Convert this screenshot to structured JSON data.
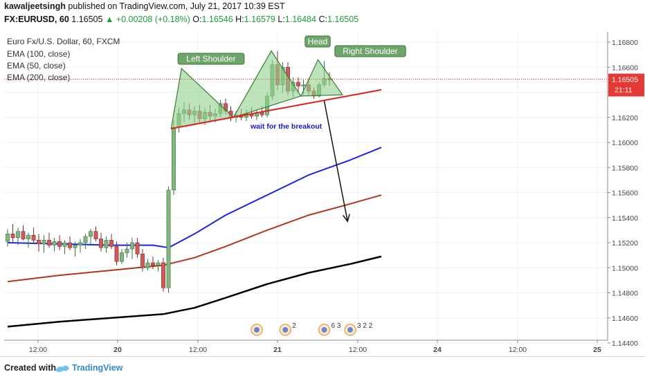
{
  "header": {
    "author": "kawaljeetsingh",
    "published_text": "published on TradingView.com, July 21, 2017 10:39 EST",
    "symbol": "FX:EURUSD, 60",
    "last": "1.16505",
    "change": "▲ +0.00208 (+0.18%)",
    "o_label": "O:",
    "o_value": "1.16546",
    "h_label": "H:",
    "h_value": "1.16579",
    "l_label": "L:",
    "l_value": "1.16484",
    "c_label": "C:",
    "c_value": "1.16505"
  },
  "legend": {
    "instrument": "Euro Fx/U.S. Dollar, 60, FXCM",
    "ema100": "EMA (100, close)",
    "ema50": "EMA (50, close)",
    "ema200": "EMA (200, close)"
  },
  "footer": {
    "created_with": "Created with",
    "brand": "TradingView"
  },
  "colors": {
    "up_candle": "#7fb77e",
    "down_candle": "#d05a5a",
    "ema50": "#1a22e6",
    "ema100": "#b4321e",
    "ema200": "#000000",
    "trendline": "#e02020",
    "pattern_fill": "#8fd08a",
    "pattern_stroke": "#3a7a30",
    "annotation_text": "#1818c8",
    "price_tag": "#e53935"
  },
  "chart_data": {
    "type": "candlestick",
    "timeframe": "60",
    "y_axis": {
      "ticks": [
        "1.16800",
        "1.16600",
        "1.16400",
        "1.16200",
        "1.16000",
        "1.15800",
        "1.15600",
        "1.15400",
        "1.15200",
        "1.15000",
        "1.14800",
        "1.14600",
        "1.14400"
      ],
      "range": [
        1.144,
        1.169
      ]
    },
    "x_axis": {
      "ticks": [
        "12:00",
        "20",
        "12:00",
        "21",
        "12:00",
        "24",
        "12:00",
        "25"
      ]
    },
    "current_price": {
      "value": "1.16505",
      "countdown": "21:11"
    },
    "candles": [
      {
        "o": 1.1521,
        "h": 1.1531,
        "l": 1.1517,
        "c": 1.1527
      },
      {
        "o": 1.1527,
        "h": 1.1535,
        "l": 1.152,
        "c": 1.1524
      },
      {
        "o": 1.1524,
        "h": 1.1532,
        "l": 1.1518,
        "c": 1.1529
      },
      {
        "o": 1.1529,
        "h": 1.1534,
        "l": 1.1522,
        "c": 1.1523
      },
      {
        "o": 1.1523,
        "h": 1.1528,
        "l": 1.1516,
        "c": 1.1526
      },
      {
        "o": 1.1526,
        "h": 1.1532,
        "l": 1.152,
        "c": 1.1522
      },
      {
        "o": 1.1522,
        "h": 1.1527,
        "l": 1.1513,
        "c": 1.1519
      },
      {
        "o": 1.1519,
        "h": 1.1526,
        "l": 1.1512,
        "c": 1.1522
      },
      {
        "o": 1.1522,
        "h": 1.1528,
        "l": 1.1516,
        "c": 1.1518
      },
      {
        "o": 1.1518,
        "h": 1.1524,
        "l": 1.1513,
        "c": 1.1521
      },
      {
        "o": 1.1521,
        "h": 1.1526,
        "l": 1.1514,
        "c": 1.1517
      },
      {
        "o": 1.1517,
        "h": 1.1522,
        "l": 1.1511,
        "c": 1.152
      },
      {
        "o": 1.152,
        "h": 1.1525,
        "l": 1.1514,
        "c": 1.1516
      },
      {
        "o": 1.1516,
        "h": 1.1521,
        "l": 1.1509,
        "c": 1.1518
      },
      {
        "o": 1.1518,
        "h": 1.1523,
        "l": 1.1512,
        "c": 1.152
      },
      {
        "o": 1.152,
        "h": 1.1527,
        "l": 1.1515,
        "c": 1.1525
      },
      {
        "o": 1.1525,
        "h": 1.1531,
        "l": 1.1519,
        "c": 1.1529
      },
      {
        "o": 1.1529,
        "h": 1.1533,
        "l": 1.1521,
        "c": 1.1523
      },
      {
        "o": 1.1523,
        "h": 1.1528,
        "l": 1.1513,
        "c": 1.1516
      },
      {
        "o": 1.1516,
        "h": 1.1525,
        "l": 1.1512,
        "c": 1.1522
      },
      {
        "o": 1.1522,
        "h": 1.1527,
        "l": 1.1515,
        "c": 1.1517
      },
      {
        "o": 1.1517,
        "h": 1.1521,
        "l": 1.1502,
        "c": 1.1505
      },
      {
        "o": 1.1505,
        "h": 1.1515,
        "l": 1.1503,
        "c": 1.1512
      },
      {
        "o": 1.1512,
        "h": 1.152,
        "l": 1.1508,
        "c": 1.1515
      },
      {
        "o": 1.1515,
        "h": 1.1524,
        "l": 1.1507,
        "c": 1.152
      },
      {
        "o": 1.152,
        "h": 1.1524,
        "l": 1.1508,
        "c": 1.1511
      },
      {
        "o": 1.1511,
        "h": 1.1515,
        "l": 1.1497,
        "c": 1.15
      },
      {
        "o": 1.15,
        "h": 1.1507,
        "l": 1.1498,
        "c": 1.1504
      },
      {
        "o": 1.1504,
        "h": 1.1509,
        "l": 1.1499,
        "c": 1.1502
      },
      {
        "o": 1.1502,
        "h": 1.1506,
        "l": 1.1497,
        "c": 1.1504
      },
      {
        "o": 1.1504,
        "h": 1.1508,
        "l": 1.1481,
        "c": 1.1484
      },
      {
        "o": 1.1484,
        "h": 1.1565,
        "l": 1.148,
        "c": 1.1562
      },
      {
        "o": 1.1562,
        "h": 1.1618,
        "l": 1.1558,
        "c": 1.1612
      },
      {
        "o": 1.1612,
        "h": 1.1628,
        "l": 1.1608,
        "c": 1.1623
      },
      {
        "o": 1.1623,
        "h": 1.1632,
        "l": 1.1616,
        "c": 1.1626
      },
      {
        "o": 1.1626,
        "h": 1.1631,
        "l": 1.1618,
        "c": 1.1622
      },
      {
        "o": 1.1622,
        "h": 1.1629,
        "l": 1.1614,
        "c": 1.1625
      },
      {
        "o": 1.1625,
        "h": 1.163,
        "l": 1.1616,
        "c": 1.1619
      },
      {
        "o": 1.1619,
        "h": 1.1628,
        "l": 1.1614,
        "c": 1.1624
      },
      {
        "o": 1.1624,
        "h": 1.163,
        "l": 1.1617,
        "c": 1.1621
      },
      {
        "o": 1.1621,
        "h": 1.1627,
        "l": 1.1616,
        "c": 1.1623
      },
      {
        "o": 1.1623,
        "h": 1.1634,
        "l": 1.162,
        "c": 1.1631
      },
      {
        "o": 1.1631,
        "h": 1.1635,
        "l": 1.1622,
        "c": 1.1625
      },
      {
        "o": 1.1625,
        "h": 1.1629,
        "l": 1.1617,
        "c": 1.162
      },
      {
        "o": 1.162,
        "h": 1.1625,
        "l": 1.1616,
        "c": 1.1622
      },
      {
        "o": 1.1622,
        "h": 1.1627,
        "l": 1.1618,
        "c": 1.162
      },
      {
        "o": 1.162,
        "h": 1.1626,
        "l": 1.1617,
        "c": 1.1623
      },
      {
        "o": 1.1623,
        "h": 1.1628,
        "l": 1.1619,
        "c": 1.1621
      },
      {
        "o": 1.1621,
        "h": 1.1626,
        "l": 1.1618,
        "c": 1.1624
      },
      {
        "o": 1.1624,
        "h": 1.1629,
        "l": 1.162,
        "c": 1.1622
      },
      {
        "o": 1.1622,
        "h": 1.164,
        "l": 1.162,
        "c": 1.1637
      },
      {
        "o": 1.1637,
        "h": 1.1666,
        "l": 1.1634,
        "c": 1.1662
      },
      {
        "o": 1.1662,
        "h": 1.1673,
        "l": 1.1642,
        "c": 1.1646
      },
      {
        "o": 1.1646,
        "h": 1.1664,
        "l": 1.164,
        "c": 1.166
      },
      {
        "o": 1.166,
        "h": 1.1664,
        "l": 1.1638,
        "c": 1.1641
      },
      {
        "o": 1.1641,
        "h": 1.1652,
        "l": 1.1636,
        "c": 1.1648
      },
      {
        "o": 1.1648,
        "h": 1.1652,
        "l": 1.164,
        "c": 1.1645
      },
      {
        "o": 1.1645,
        "h": 1.165,
        "l": 1.1638,
        "c": 1.1646
      },
      {
        "o": 1.1646,
        "h": 1.1649,
        "l": 1.1638,
        "c": 1.1641
      },
      {
        "o": 1.1641,
        "h": 1.1644,
        "l": 1.1635,
        "c": 1.1637
      },
      {
        "o": 1.1637,
        "h": 1.1648,
        "l": 1.1636,
        "c": 1.1646
      },
      {
        "o": 1.1646,
        "h": 1.1665,
        "l": 1.1644,
        "c": 1.1651
      },
      {
        "o": 1.1651,
        "h": 1.1656,
        "l": 1.1645,
        "c": 1.165
      }
    ],
    "ema50_points": [
      [
        0,
        1.152
      ],
      [
        10,
        1.1519
      ],
      [
        20,
        1.1518
      ],
      [
        28,
        1.1518
      ],
      [
        31,
        1.1516
      ],
      [
        36,
        1.1527
      ],
      [
        42,
        1.1542
      ],
      [
        50,
        1.1558
      ],
      [
        58,
        1.1574
      ],
      [
        66,
        1.1586
      ],
      [
        72,
        1.1596
      ]
    ],
    "ema100_points": [
      [
        0,
        1.1489
      ],
      [
        10,
        1.1494
      ],
      [
        20,
        1.1498
      ],
      [
        30,
        1.1502
      ],
      [
        36,
        1.1508
      ],
      [
        42,
        1.1517
      ],
      [
        50,
        1.153
      ],
      [
        58,
        1.1542
      ],
      [
        66,
        1.1551
      ],
      [
        72,
        1.1558
      ]
    ],
    "ema200_points": [
      [
        0,
        1.1453
      ],
      [
        10,
        1.1457
      ],
      [
        20,
        1.146
      ],
      [
        30,
        1.1463
      ],
      [
        36,
        1.1468
      ],
      [
        42,
        1.1476
      ],
      [
        50,
        1.1487
      ],
      [
        58,
        1.1496
      ],
      [
        66,
        1.1503
      ],
      [
        72,
        1.1509
      ]
    ],
    "trendline": [
      [
        31.5,
        1.1611
      ],
      [
        72,
        1.1642
      ]
    ],
    "pattern": {
      "left_shoulder_label": "Left Shoulder",
      "head_label": "Head",
      "right_shoulder_label": "Right Shoulder",
      "points": [
        [
          31.5,
          1.1611
        ],
        [
          33.5,
          1.1659
        ],
        [
          43.5,
          1.162
        ],
        [
          50.8,
          1.1673
        ],
        [
          56.5,
          1.1637
        ],
        [
          59.8,
          1.1666
        ],
        [
          64.5,
          1.1638
        ]
      ],
      "annotation": "wait for the breakout"
    },
    "forecast_arrow": [
      [
        61,
        1.1633
      ],
      [
        65.5,
        1.1537
      ]
    ],
    "events": [
      {
        "at": 48.0,
        "count": ""
      },
      {
        "at": 53.5,
        "count": "2"
      },
      {
        "at": 61.0,
        "count": "6 3"
      },
      {
        "at": 66.0,
        "count": "3 2 2"
      }
    ]
  }
}
